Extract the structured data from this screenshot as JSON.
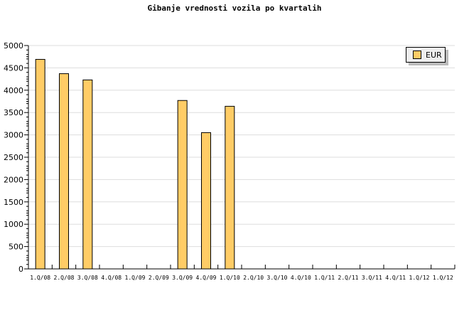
{
  "chart_data": {
    "type": "bar",
    "title": "Gibanje vrednosti vozila po kvartalih",
    "categories": [
      "1.Q/08",
      "2.Q/08",
      "3.Q/08",
      "4.Q/08",
      "1.Q/09",
      "2.Q/09",
      "3.Q/09",
      "4.Q/09",
      "1.Q/10",
      "2.Q/10",
      "3.Q/10",
      "4.Q/10",
      "1.Q/11",
      "2.Q/11",
      "3.Q/11",
      "4.Q/11",
      "1.Q/12",
      "1.Q/12"
    ],
    "series": [
      {
        "name": "EUR",
        "color": "#ffcc66",
        "values": [
          4690,
          4370,
          4230,
          null,
          null,
          null,
          3770,
          3050,
          3640,
          null,
          null,
          null,
          null,
          null,
          null,
          null,
          null,
          null
        ]
      }
    ],
    "ylim": [
      0,
      5000
    ],
    "yticks": [
      0,
      500,
      1000,
      1500,
      2000,
      2500,
      3000,
      3500,
      4000,
      4500,
      5000
    ],
    "grid": true,
    "legend": "top-right"
  }
}
